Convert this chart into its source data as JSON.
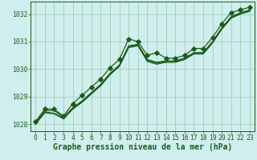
{
  "xlabel": "Graphe pression niveau de la mer (hPa)",
  "ylim": [
    1027.75,
    1032.45
  ],
  "xlim": [
    -0.5,
    23.5
  ],
  "yticks": [
    1028,
    1029,
    1030,
    1031,
    1032
  ],
  "xticks": [
    0,
    1,
    2,
    3,
    4,
    5,
    6,
    7,
    8,
    9,
    10,
    11,
    12,
    13,
    14,
    15,
    16,
    17,
    18,
    19,
    20,
    21,
    22,
    23
  ],
  "bg_color": "#d0eeee",
  "grid_color": "#98c8a8",
  "line_color": "#1a5c1a",
  "text_color": "#1a5c1a",
  "series1": [
    1028.1,
    1028.55,
    1028.55,
    1028.3,
    1028.75,
    1029.05,
    1029.35,
    1029.65,
    1030.05,
    1030.35,
    1031.1,
    1031.0,
    1030.5,
    1030.6,
    1030.4,
    1030.4,
    1030.5,
    1030.75,
    1030.75,
    1031.15,
    1031.65,
    1032.05,
    1032.15,
    1032.25
  ],
  "series2": [
    1028.05,
    1028.5,
    1028.5,
    1028.25,
    1028.6,
    1028.85,
    1029.15,
    1029.45,
    1029.85,
    1030.15,
    1030.85,
    1030.9,
    1030.35,
    1030.25,
    1030.3,
    1030.3,
    1030.4,
    1030.6,
    1030.6,
    1031.0,
    1031.5,
    1031.9,
    1032.05,
    1032.15
  ],
  "series3": [
    1028.02,
    1028.45,
    1028.4,
    1028.22,
    1028.58,
    1028.82,
    1029.12,
    1029.42,
    1029.82,
    1030.12,
    1030.82,
    1030.87,
    1030.32,
    1030.22,
    1030.27,
    1030.27,
    1030.37,
    1030.57,
    1030.57,
    1030.97,
    1031.47,
    1031.87,
    1032.02,
    1032.12
  ],
  "series4": [
    1028.0,
    1028.42,
    1028.38,
    1028.2,
    1028.55,
    1028.8,
    1029.1,
    1029.4,
    1029.8,
    1030.1,
    1030.78,
    1030.85,
    1030.28,
    1030.18,
    1030.25,
    1030.25,
    1030.35,
    1030.55,
    1030.55,
    1030.95,
    1031.45,
    1031.85,
    1032.0,
    1032.1
  ],
  "marker": "D",
  "marker_size": 2.8,
  "linewidth": 0.9,
  "label_fontsize": 7.0,
  "tick_fontsize": 5.8
}
